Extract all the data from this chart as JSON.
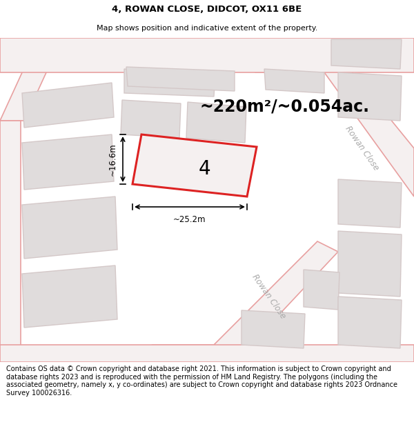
{
  "title_line1": "4, ROWAN CLOSE, DIDCOT, OX11 6BE",
  "title_line2": "Map shows position and indicative extent of the property.",
  "area_text": "~220m²/~0.054ac.",
  "property_number": "4",
  "dim_width": "~25.2m",
  "dim_height": "~16.6m",
  "road_label_right": "Rowan Close",
  "road_label_bottom": "Rowan Close",
  "footer_text": "Contains OS data © Crown copyright and database right 2021. This information is subject to Crown copyright and database rights 2023 and is reproduced with the permission of HM Land Registry. The polygons (including the associated geometry, namely x, y co-ordinates) are subject to Crown copyright and database rights 2023 Ordnance Survey 100026316.",
  "map_bg": "#ffffff",
  "road_fill": "#f5f0f0",
  "road_stroke": "#e8a0a0",
  "property_fill": "#f5f0f0",
  "property_stroke": "#dd2222",
  "building_fill": "#e0dcdc",
  "building_stroke": "#d4c8c8",
  "title_fontsize": 9.5,
  "subtitle_fontsize": 8.0,
  "area_fontsize": 17,
  "footer_fontsize": 7.0,
  "label_color": "#aaaaaa",
  "dim_color": "#000000"
}
